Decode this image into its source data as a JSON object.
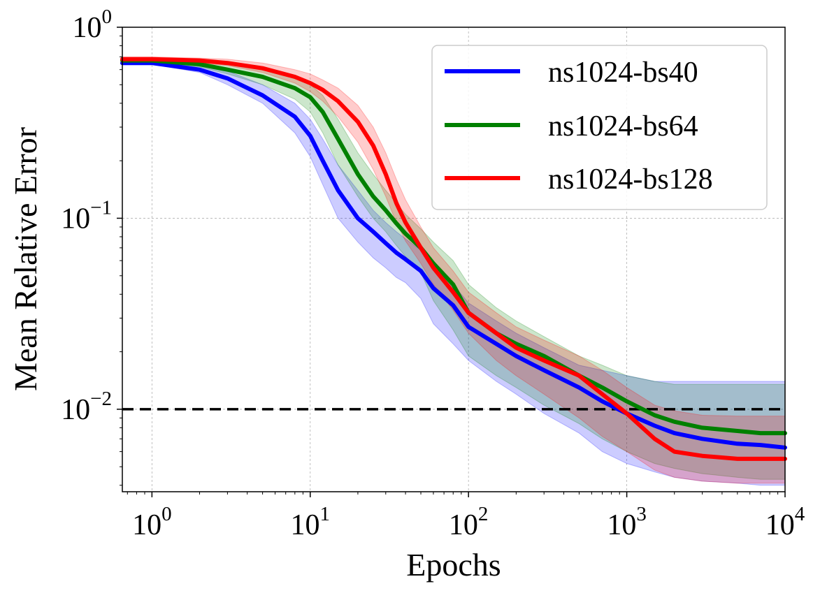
{
  "chart_data": {
    "type": "line",
    "xlabel": "Epochs",
    "ylabel": "Mean Relative Error",
    "xscale": "log",
    "yscale": "log",
    "xlim": [
      0.65,
      10000
    ],
    "ylim": [
      0.0037,
      1.0
    ],
    "x_ticks": [
      {
        "value": 1,
        "base": "10",
        "exp": "0"
      },
      {
        "value": 10,
        "base": "10",
        "exp": "1"
      },
      {
        "value": 100,
        "base": "10",
        "exp": "2"
      },
      {
        "value": 1000,
        "base": "10",
        "exp": "3"
      },
      {
        "value": 10000,
        "base": "10",
        "exp": "4"
      }
    ],
    "y_ticks": [
      {
        "value": 0.01,
        "base": "10",
        "exp": "−2"
      },
      {
        "value": 0.1,
        "base": "10",
        "exp": "−1"
      },
      {
        "value": 1,
        "base": "10",
        "exp": "0"
      }
    ],
    "grid": true,
    "legend_position": "top-right",
    "reference_line": {
      "y": 0.01,
      "style": "dashed",
      "color": "#000000"
    },
    "x": [
      0.65,
      1,
      2,
      3,
      5,
      8,
      10,
      12,
      15,
      20,
      25,
      30,
      35,
      40,
      50,
      60,
      80,
      100,
      150,
      200,
      300,
      500,
      700,
      1000,
      1500,
      2000,
      3000,
      5000,
      7000,
      10000
    ],
    "series": [
      {
        "name": "ns1024-bs40",
        "color": "#0000ff",
        "values": [
          0.65,
          0.65,
          0.6,
          0.54,
          0.44,
          0.34,
          0.27,
          0.2,
          0.14,
          0.1,
          0.085,
          0.074,
          0.066,
          0.061,
          0.053,
          0.043,
          0.035,
          0.027,
          0.022,
          0.019,
          0.016,
          0.013,
          0.011,
          0.0095,
          0.0082,
          0.0075,
          0.007,
          0.0066,
          0.0065,
          0.0063
        ],
        "lower": [
          0.64,
          0.64,
          0.58,
          0.5,
          0.4,
          0.28,
          0.21,
          0.15,
          0.1,
          0.075,
          0.062,
          0.055,
          0.049,
          0.046,
          0.038,
          0.028,
          0.022,
          0.018,
          0.014,
          0.012,
          0.0095,
          0.0075,
          0.006,
          0.0052,
          0.0047,
          0.0044,
          0.0042,
          0.0041,
          0.004,
          0.004
        ],
        "upper": [
          0.67,
          0.67,
          0.63,
          0.59,
          0.5,
          0.4,
          0.33,
          0.26,
          0.19,
          0.14,
          0.11,
          0.095,
          0.085,
          0.078,
          0.068,
          0.055,
          0.045,
          0.036,
          0.029,
          0.025,
          0.021,
          0.017,
          0.016,
          0.015,
          0.014,
          0.014,
          0.014,
          0.014,
          0.014,
          0.014
        ]
      },
      {
        "name": "ns1024-bs64",
        "color": "#008000",
        "values": [
          0.67,
          0.67,
          0.64,
          0.6,
          0.55,
          0.48,
          0.43,
          0.36,
          0.26,
          0.17,
          0.13,
          0.11,
          0.094,
          0.083,
          0.07,
          0.058,
          0.045,
          0.032,
          0.025,
          0.022,
          0.019,
          0.015,
          0.013,
          0.011,
          0.0093,
          0.0086,
          0.008,
          0.0077,
          0.0075,
          0.0075
        ],
        "lower": [
          0.66,
          0.66,
          0.62,
          0.57,
          0.5,
          0.42,
          0.36,
          0.28,
          0.19,
          0.13,
          0.1,
          0.085,
          0.072,
          0.063,
          0.052,
          0.037,
          0.026,
          0.019,
          0.015,
          0.013,
          0.0105,
          0.0084,
          0.007,
          0.006,
          0.0052,
          0.0049,
          0.0046,
          0.0044,
          0.0043,
          0.0043
        ],
        "upper": [
          0.69,
          0.69,
          0.67,
          0.64,
          0.6,
          0.55,
          0.5,
          0.44,
          0.33,
          0.22,
          0.17,
          0.14,
          0.12,
          0.105,
          0.088,
          0.075,
          0.06,
          0.045,
          0.034,
          0.029,
          0.024,
          0.019,
          0.017,
          0.015,
          0.014,
          0.0135,
          0.0135,
          0.0135,
          0.0135,
          0.0135
        ]
      },
      {
        "name": "ns1024-bs128",
        "color": "#ff0000",
        "values": [
          0.68,
          0.68,
          0.67,
          0.65,
          0.61,
          0.55,
          0.51,
          0.47,
          0.41,
          0.32,
          0.24,
          0.17,
          0.12,
          0.095,
          0.07,
          0.055,
          0.041,
          0.032,
          0.025,
          0.021,
          0.018,
          0.015,
          0.012,
          0.0095,
          0.007,
          0.006,
          0.0057,
          0.0055,
          0.0055,
          0.0055
        ],
        "lower": [
          0.67,
          0.67,
          0.65,
          0.63,
          0.58,
          0.51,
          0.46,
          0.41,
          0.34,
          0.25,
          0.18,
          0.13,
          0.095,
          0.076,
          0.058,
          0.045,
          0.033,
          0.025,
          0.018,
          0.015,
          0.012,
          0.009,
          0.0072,
          0.006,
          0.0048,
          0.0044,
          0.0042,
          0.0041,
          0.0041,
          0.0041
        ],
        "upper": [
          0.7,
          0.7,
          0.69,
          0.68,
          0.65,
          0.6,
          0.57,
          0.53,
          0.48,
          0.39,
          0.3,
          0.22,
          0.16,
          0.125,
          0.09,
          0.07,
          0.053,
          0.041,
          0.032,
          0.027,
          0.023,
          0.019,
          0.016,
          0.013,
          0.0105,
          0.0098,
          0.0093,
          0.0092,
          0.0092,
          0.0092
        ]
      }
    ]
  }
}
